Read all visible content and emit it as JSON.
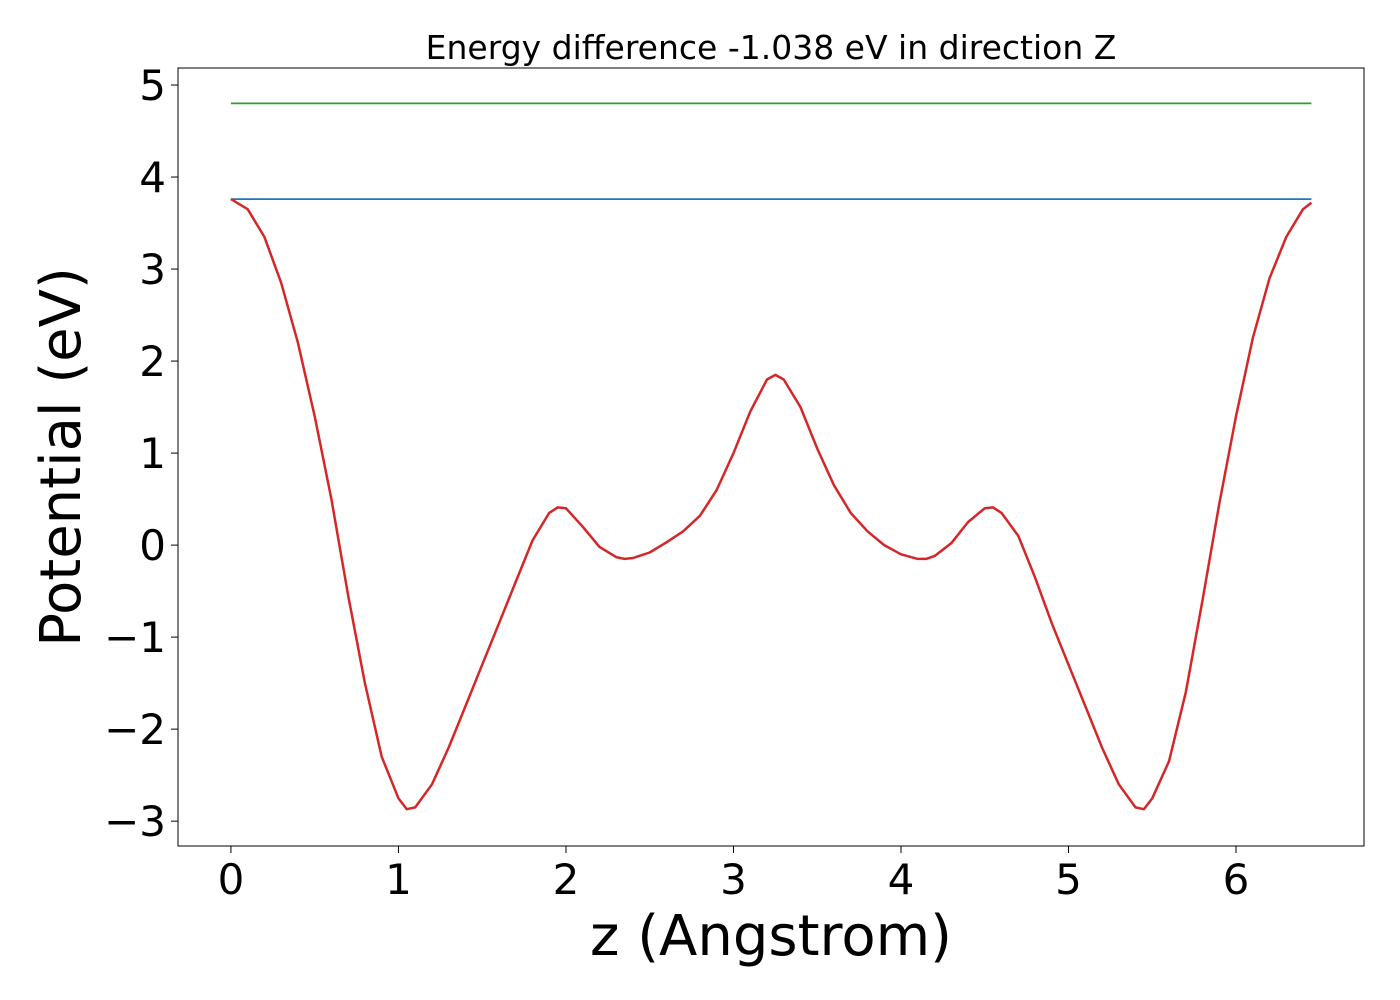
{
  "chart_data": {
    "type": "line",
    "title": "Energy difference -1.038 eV in direction Z",
    "x_label": "z (Angstrom)",
    "y_label": "Potential (eV)",
    "xlim": [
      -0.316,
      6.764
    ],
    "ylim": [
      -3.27,
      5.185
    ],
    "xticks": [
      0,
      1,
      2,
      3,
      4,
      5,
      6
    ],
    "yticks": [
      {
        "value": -3,
        "label": "−3"
      },
      {
        "value": -2,
        "label": "−2"
      },
      {
        "value": -1,
        "label": "−1"
      },
      0,
      1,
      2,
      3,
      4,
      5
    ],
    "grid": false,
    "series": [
      {
        "color": "#2ca02c",
        "x": [
          0,
          6.45
        ],
        "values": [
          4.8,
          4.8
        ]
      },
      {
        "color": "#1f77b4",
        "x": [
          0,
          6.45
        ],
        "values": [
          3.76,
          3.76
        ]
      },
      {
        "color": "#d62728",
        "x": [
          0,
          0.1,
          0.2,
          0.3,
          0.4,
          0.5,
          0.6,
          0.7,
          0.8,
          0.9,
          1.0,
          1.05,
          1.1,
          1.2,
          1.3,
          1.4,
          1.5,
          1.6,
          1.7,
          1.8,
          1.9,
          1.95,
          2.0,
          2.1,
          2.2,
          2.3,
          2.35,
          2.4,
          2.5,
          2.6,
          2.7,
          2.8,
          2.9,
          3.0,
          3.1,
          3.2,
          3.25,
          3.3,
          3.4,
          3.5,
          3.6,
          3.7,
          3.8,
          3.9,
          4.0,
          4.1,
          4.15,
          4.2,
          4.3,
          4.4,
          4.5,
          4.55,
          4.6,
          4.7,
          4.8,
          4.9,
          5.0,
          5.1,
          5.2,
          5.3,
          5.4,
          5.45,
          5.5,
          5.6,
          5.7,
          5.8,
          5.9,
          6.0,
          6.1,
          6.2,
          6.3,
          6.4,
          6.45
        ],
        "values": [
          3.76,
          3.65,
          3.35,
          2.85,
          2.2,
          1.4,
          0.5,
          -0.55,
          -1.5,
          -2.3,
          -2.75,
          -2.87,
          -2.85,
          -2.6,
          -2.2,
          -1.75,
          -1.3,
          -0.85,
          -0.4,
          0.05,
          0.35,
          0.41,
          0.4,
          0.2,
          -0.02,
          -0.13,
          -0.15,
          -0.14,
          -0.08,
          0.03,
          0.15,
          0.32,
          0.6,
          1.0,
          1.45,
          1.8,
          1.85,
          1.8,
          1.5,
          1.05,
          0.65,
          0.35,
          0.15,
          0.0,
          -0.1,
          -0.15,
          -0.15,
          -0.12,
          0.02,
          0.25,
          0.4,
          0.41,
          0.35,
          0.1,
          -0.35,
          -0.85,
          -1.3,
          -1.75,
          -2.2,
          -2.6,
          -2.85,
          -2.87,
          -2.75,
          -2.35,
          -1.6,
          -0.6,
          0.45,
          1.4,
          2.25,
          2.9,
          3.35,
          3.65,
          3.72
        ]
      }
    ]
  }
}
